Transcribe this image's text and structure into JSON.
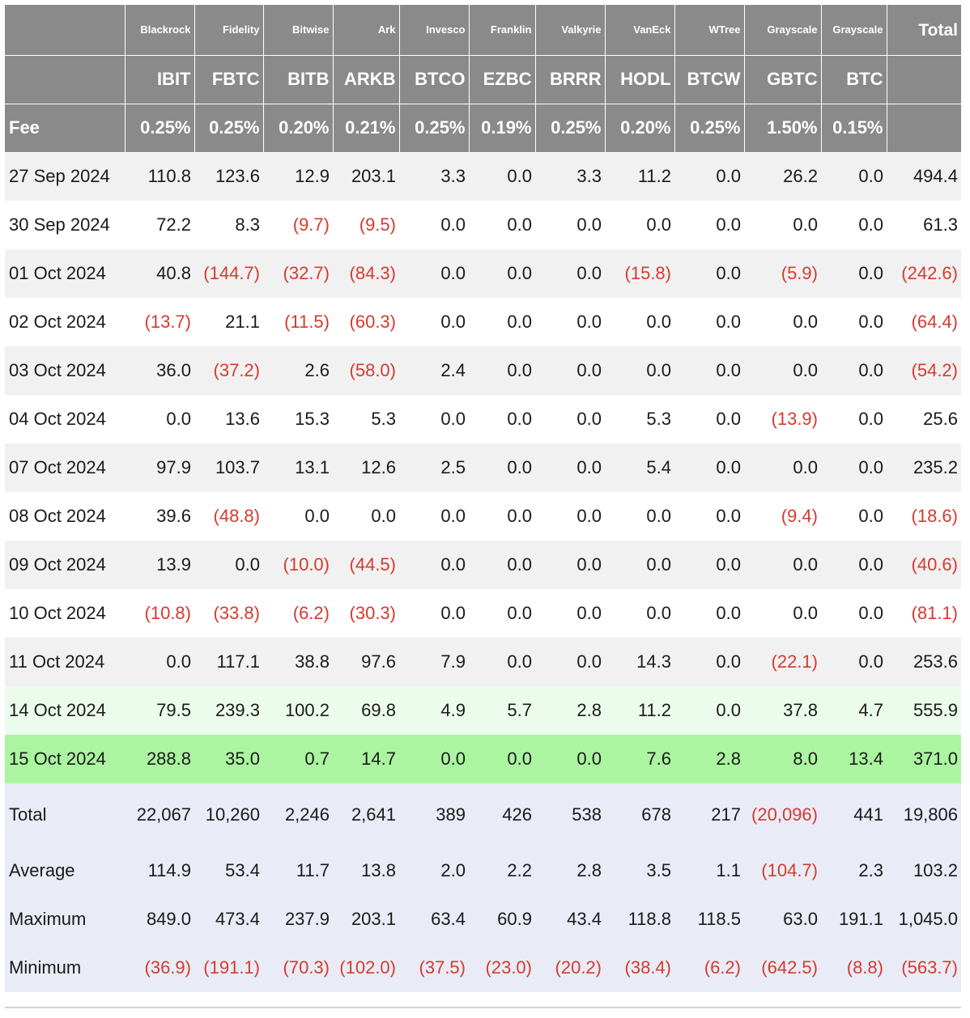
{
  "columns": [
    {
      "issuer": "Blackrock",
      "ticker": "IBIT",
      "fee": "0.25%"
    },
    {
      "issuer": "Fidelity",
      "ticker": "FBTC",
      "fee": "0.25%"
    },
    {
      "issuer": "Bitwise",
      "ticker": "BITB",
      "fee": "0.20%"
    },
    {
      "issuer": "Ark",
      "ticker": "ARKB",
      "fee": "0.21%"
    },
    {
      "issuer": "Invesco",
      "ticker": "BTCO",
      "fee": "0.25%"
    },
    {
      "issuer": "Franklin",
      "ticker": "EZBC",
      "fee": "0.19%"
    },
    {
      "issuer": "Valkyrie",
      "ticker": "BRRR",
      "fee": "0.25%"
    },
    {
      "issuer": "VanEck",
      "ticker": "HODL",
      "fee": "0.20%"
    },
    {
      "issuer": "WTree",
      "ticker": "BTCW",
      "fee": "0.25%"
    },
    {
      "issuer": "Grayscale",
      "ticker": "GBTC",
      "fee": "1.50%"
    },
    {
      "issuer": "Grayscale",
      "ticker": "BTC",
      "fee": "0.15%"
    }
  ],
  "total_header": "Total",
  "fee_label": "Fee",
  "rows": [
    {
      "date": "27 Sep 2024",
      "values": [
        "110.8",
        "123.6",
        "12.9",
        "203.1",
        "3.3",
        "0.0",
        "3.3",
        "11.2",
        "0.0",
        "26.2",
        "0.0"
      ],
      "total": "494.4",
      "highlight": ""
    },
    {
      "date": "30 Sep 2024",
      "values": [
        "72.2",
        "8.3",
        "(9.7)",
        "(9.5)",
        "0.0",
        "0.0",
        "0.0",
        "0.0",
        "0.0",
        "0.0",
        "0.0"
      ],
      "total": "61.3",
      "highlight": ""
    },
    {
      "date": "01 Oct 2024",
      "values": [
        "40.8",
        "(144.7)",
        "(32.7)",
        "(84.3)",
        "0.0",
        "0.0",
        "0.0",
        "(15.8)",
        "0.0",
        "(5.9)",
        "0.0"
      ],
      "total": "(242.6)",
      "highlight": ""
    },
    {
      "date": "02 Oct 2024",
      "values": [
        "(13.7)",
        "21.1",
        "(11.5)",
        "(60.3)",
        "0.0",
        "0.0",
        "0.0",
        "0.0",
        "0.0",
        "0.0",
        "0.0"
      ],
      "total": "(64.4)",
      "highlight": ""
    },
    {
      "date": "03 Oct 2024",
      "values": [
        "36.0",
        "(37.2)",
        "2.6",
        "(58.0)",
        "2.4",
        "0.0",
        "0.0",
        "0.0",
        "0.0",
        "0.0",
        "0.0"
      ],
      "total": "(54.2)",
      "highlight": ""
    },
    {
      "date": "04 Oct 2024",
      "values": [
        "0.0",
        "13.6",
        "15.3",
        "5.3",
        "0.0",
        "0.0",
        "0.0",
        "5.3",
        "0.0",
        "(13.9)",
        "0.0"
      ],
      "total": "25.6",
      "highlight": ""
    },
    {
      "date": "07 Oct 2024",
      "values": [
        "97.9",
        "103.7",
        "13.1",
        "12.6",
        "2.5",
        "0.0",
        "0.0",
        "5.4",
        "0.0",
        "0.0",
        "0.0"
      ],
      "total": "235.2",
      "highlight": ""
    },
    {
      "date": "08 Oct 2024",
      "values": [
        "39.6",
        "(48.8)",
        "0.0",
        "0.0",
        "0.0",
        "0.0",
        "0.0",
        "0.0",
        "0.0",
        "(9.4)",
        "0.0"
      ],
      "total": "(18.6)",
      "highlight": ""
    },
    {
      "date": "09 Oct 2024",
      "values": [
        "13.9",
        "0.0",
        "(10.0)",
        "(44.5)",
        "0.0",
        "0.0",
        "0.0",
        "0.0",
        "0.0",
        "0.0",
        "0.0"
      ],
      "total": "(40.6)",
      "highlight": ""
    },
    {
      "date": "10 Oct 2024",
      "values": [
        "(10.8)",
        "(33.8)",
        "(6.2)",
        "(30.3)",
        "0.0",
        "0.0",
        "0.0",
        "0.0",
        "0.0",
        "0.0",
        "0.0"
      ],
      "total": "(81.1)",
      "highlight": ""
    },
    {
      "date": "11 Oct 2024",
      "values": [
        "0.0",
        "117.1",
        "38.8",
        "97.6",
        "7.9",
        "0.0",
        "0.0",
        "14.3",
        "0.0",
        "(22.1)",
        "0.0"
      ],
      "total": "253.6",
      "highlight": ""
    },
    {
      "date": "14 Oct 2024",
      "values": [
        "79.5",
        "239.3",
        "100.2",
        "69.8",
        "4.9",
        "5.7",
        "2.8",
        "11.2",
        "0.0",
        "37.8",
        "4.7"
      ],
      "total": "555.9",
      "highlight": "light"
    },
    {
      "date": "15 Oct 2024",
      "values": [
        "288.8",
        "35.0",
        "0.7",
        "14.7",
        "0.0",
        "0.0",
        "0.0",
        "7.6",
        "2.8",
        "8.0",
        "13.4"
      ],
      "total": "371.0",
      "highlight": "strong"
    }
  ],
  "summary": [
    {
      "label": "Total",
      "values": [
        "22,067",
        "10,260",
        "2,246",
        "2,641",
        "389",
        "426",
        "538",
        "678",
        "217",
        "(20,096)",
        "441"
      ],
      "total": "19,806"
    },
    {
      "label": "Average",
      "values": [
        "114.9",
        "53.4",
        "11.7",
        "13.8",
        "2.0",
        "2.2",
        "2.8",
        "3.5",
        "1.1",
        "(104.7)",
        "2.3"
      ],
      "total": "103.2"
    },
    {
      "label": "Maximum",
      "values": [
        "849.0",
        "473.4",
        "237.9",
        "203.1",
        "63.4",
        "60.9",
        "43.4",
        "118.8",
        "118.5",
        "63.0",
        "191.1"
      ],
      "total": "1,045.0"
    },
    {
      "label": "Minimum",
      "values": [
        "(36.9)",
        "(191.1)",
        "(70.3)",
        "(102.0)",
        "(37.5)",
        "(23.0)",
        "(20.2)",
        "(38.4)",
        "(6.2)",
        "(642.5)",
        "(8.8)"
      ],
      "total": "(563.7)"
    }
  ],
  "colors": {
    "header_bg": "#8a8a8a",
    "negative_text": "#d63a2f",
    "row_alt_bg": "#f1f1f1",
    "highlight_light": "#ecfcec",
    "highlight_strong": "#abf5a0",
    "summary_bg": "#e9ecf6"
  }
}
